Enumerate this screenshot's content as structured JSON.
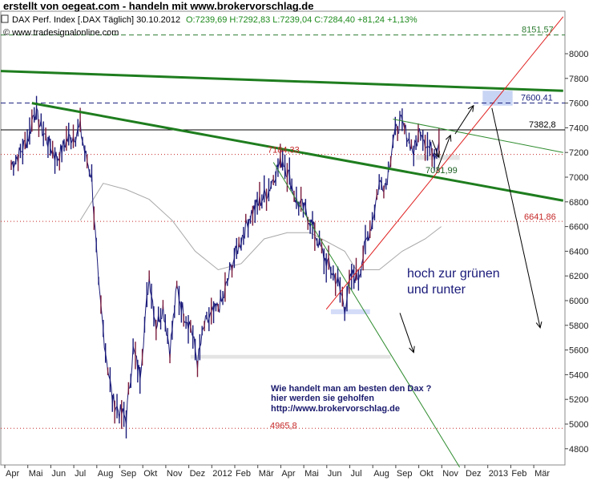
{
  "header": {
    "title": "erstellt von oegeat.com - handeln mit www.brokervorschlag.de",
    "instrument": "DAX Perf. Index [.DAX  Täglich] 30.10.2012",
    "ohlc": "O:7239,69 H:7292,83 L:7239,04 C:7284,40 +81,24 +1,13%",
    "source": "© www.tradesignalonline.com"
  },
  "annotations": {
    "main_line1": "hoch zur grünen",
    "main_line2": "und runter",
    "promo_line1": "Wie handelt man am besten  den Dax ?",
    "promo_line2": "hier werden sie geholfen",
    "promo_line3": "http://www.brokervorschlag.de"
  },
  "levels": [
    {
      "label": "8151,57",
      "value": 8151.57,
      "color": "#2e7d32",
      "style": "dashed"
    },
    {
      "label": "7600,41",
      "value": 7600.41,
      "color": "#1a237e",
      "style": "dashed"
    },
    {
      "label": "7382,8",
      "value": 7382.8,
      "color": "#000000",
      "style": "solid"
    },
    {
      "label": "7184,33",
      "value": 7184.33,
      "color": "#c62828",
      "style": "dotted"
    },
    {
      "label": "7031,99",
      "value": 7031.99,
      "color": "#1b5e20",
      "style": "none"
    },
    {
      "label": "6641,86",
      "value": 6641.86,
      "color": "#c62828",
      "style": "dotted"
    },
    {
      "label": "4965,8",
      "value": 4965.8,
      "color": "#c62828",
      "style": "dotted"
    }
  ],
  "chart_data": {
    "type": "line",
    "title": "DAX Perf. Index [.DAX  Täglich] 30.10.2012",
    "y_ticks": [
      4800,
      5000,
      5200,
      5400,
      5600,
      5800,
      6000,
      6200,
      6400,
      6600,
      6800,
      7000,
      7200,
      7400,
      7600,
      7800,
      8000
    ],
    "ylim": [
      4650,
      8300
    ],
    "x_tick_labels": [
      "Apr",
      "Mai",
      "Jun",
      "Jul",
      "Aug",
      "Sep",
      "Okt",
      "Nov",
      "Dez",
      "2012",
      "Feb",
      "Mär",
      "Apr",
      "Mai",
      "Jun",
      "Jul",
      "Aug",
      "Sep",
      "Okt",
      "Nov",
      "Dez",
      "2013",
      "Feb",
      "Mär"
    ],
    "x_tick_months": [
      0,
      1,
      2,
      3,
      4,
      5,
      6,
      7,
      8,
      9,
      10,
      11,
      12,
      13,
      14,
      15,
      16,
      17,
      18,
      19,
      20,
      21,
      22,
      23
    ],
    "price_path": {
      "months": [
        0,
        0.4,
        0.8,
        1.0,
        1.3,
        1.7,
        2.0,
        2.4,
        2.8,
        3.0,
        3.2,
        3.5,
        3.8,
        4.1,
        4.4,
        4.7,
        5.0,
        5.3,
        5.6,
        6.0,
        6.3,
        6.6,
        6.9,
        7.2,
        7.5,
        7.8,
        8.1,
        8.4,
        8.8,
        9.2,
        9.6,
        10.0,
        10.4,
        10.8,
        11.2,
        11.5,
        11.8,
        12.1,
        12.4,
        12.7,
        13.0,
        13.3,
        13.6,
        13.9,
        14.2,
        14.5,
        14.8,
        15.1,
        15.4,
        15.7,
        16.0,
        16.3,
        16.6,
        16.9,
        17.2,
        17.5,
        17.8,
        18.1,
        18.4,
        18.6
      ],
      "values": [
        7100,
        7200,
        7350,
        7550,
        7400,
        7250,
        7150,
        7300,
        7350,
        7400,
        7200,
        7000,
        6100,
        5600,
        5200,
        5100,
        5050,
        5600,
        5400,
        6200,
        5800,
        5950,
        5600,
        6100,
        5900,
        5800,
        5500,
        5800,
        5900,
        6000,
        6300,
        6500,
        6700,
        6800,
        6900,
        7050,
        7150,
        7000,
        6800,
        6750,
        6650,
        6500,
        6350,
        6250,
        6150,
        5950,
        6200,
        6200,
        6450,
        6650,
        6950,
        6950,
        7300,
        7450,
        7350,
        7200,
        7400,
        7250,
        7200,
        7284.4
      ]
    },
    "moving_average": {
      "months": [
        3.0,
        3.5,
        4.0,
        5.0,
        6.0,
        7.0,
        8.0,
        9.0,
        10.0,
        11.0,
        12.0,
        13.0,
        13.5,
        14.0,
        14.5,
        15.0,
        16.0,
        17.0,
        18.0,
        18.7
      ],
      "values": [
        6650,
        6800,
        6950,
        6900,
        6820,
        6650,
        6400,
        6250,
        6300,
        6500,
        6550,
        6550,
        6500,
        6450,
        6400,
        6250,
        6250,
        6400,
        6500,
        6600
      ]
    },
    "trend_lines": [
      {
        "name": "green-upper-trend",
        "color": "#1e7d1e",
        "width": 3,
        "from": [
          -0.5,
          7860
        ],
        "to": [
          24.0,
          7700
        ]
      },
      {
        "name": "green-lower-trend",
        "color": "#1e7d1e",
        "width": 3,
        "from": [
          0.9,
          7600
        ],
        "to": [
          24.0,
          6810
        ]
      },
      {
        "name": "green-thin-trend",
        "color": "#2e8b2e",
        "width": 1,
        "from": [
          16.6,
          7470
        ],
        "to": [
          24.0,
          7200
        ]
      },
      {
        "name": "green-down-channel",
        "color": "#2e8b2e",
        "width": 1,
        "from": [
          11.4,
          7120
        ],
        "to": [
          19.5,
          4650
        ]
      },
      {
        "name": "red-up-trend",
        "color": "#e02020",
        "width": 1,
        "from": [
          13.7,
          5930
        ],
        "to": [
          24.0,
          8300
        ]
      }
    ],
    "arrows": [
      {
        "name": "arrow-down-small",
        "from": [
          16.9,
          5900
        ],
        "to": [
          17.5,
          5580
        ]
      },
      {
        "name": "arrow-down-right",
        "from": [
          18.3,
          7300
        ],
        "to": [
          18.6,
          7160
        ]
      },
      {
        "name": "arrow-up-1",
        "from": [
          18.5,
          7050
        ],
        "to": [
          19.1,
          7340
        ]
      },
      {
        "name": "arrow-up-2",
        "from": [
          19.3,
          7350
        ],
        "to": [
          20.1,
          7580
        ]
      },
      {
        "name": "arrow-down-long",
        "from": [
          20.9,
          7560
        ],
        "to": [
          23.0,
          5780
        ]
      }
    ],
    "zones": [
      {
        "name": "zone-top",
        "from": [
          20.5,
          7700
        ],
        "to": [
          21.8,
          7580
        ],
        "color": "#c8d4f4"
      },
      {
        "name": "zone-low",
        "from": [
          13.9,
          5930
        ],
        "to": [
          15.6,
          5890
        ],
        "color": "#d4dcf8"
      },
      {
        "name": "zone-mid",
        "from": [
          7.8,
          5560
        ],
        "to": [
          16.5,
          5530
        ],
        "color": "#e4e4e4"
      },
      {
        "name": "zone-right",
        "from": [
          17.6,
          7180
        ],
        "to": [
          19.5,
          7140
        ],
        "color": "#e4e4e4"
      }
    ],
    "grid": false,
    "legend": "none"
  }
}
